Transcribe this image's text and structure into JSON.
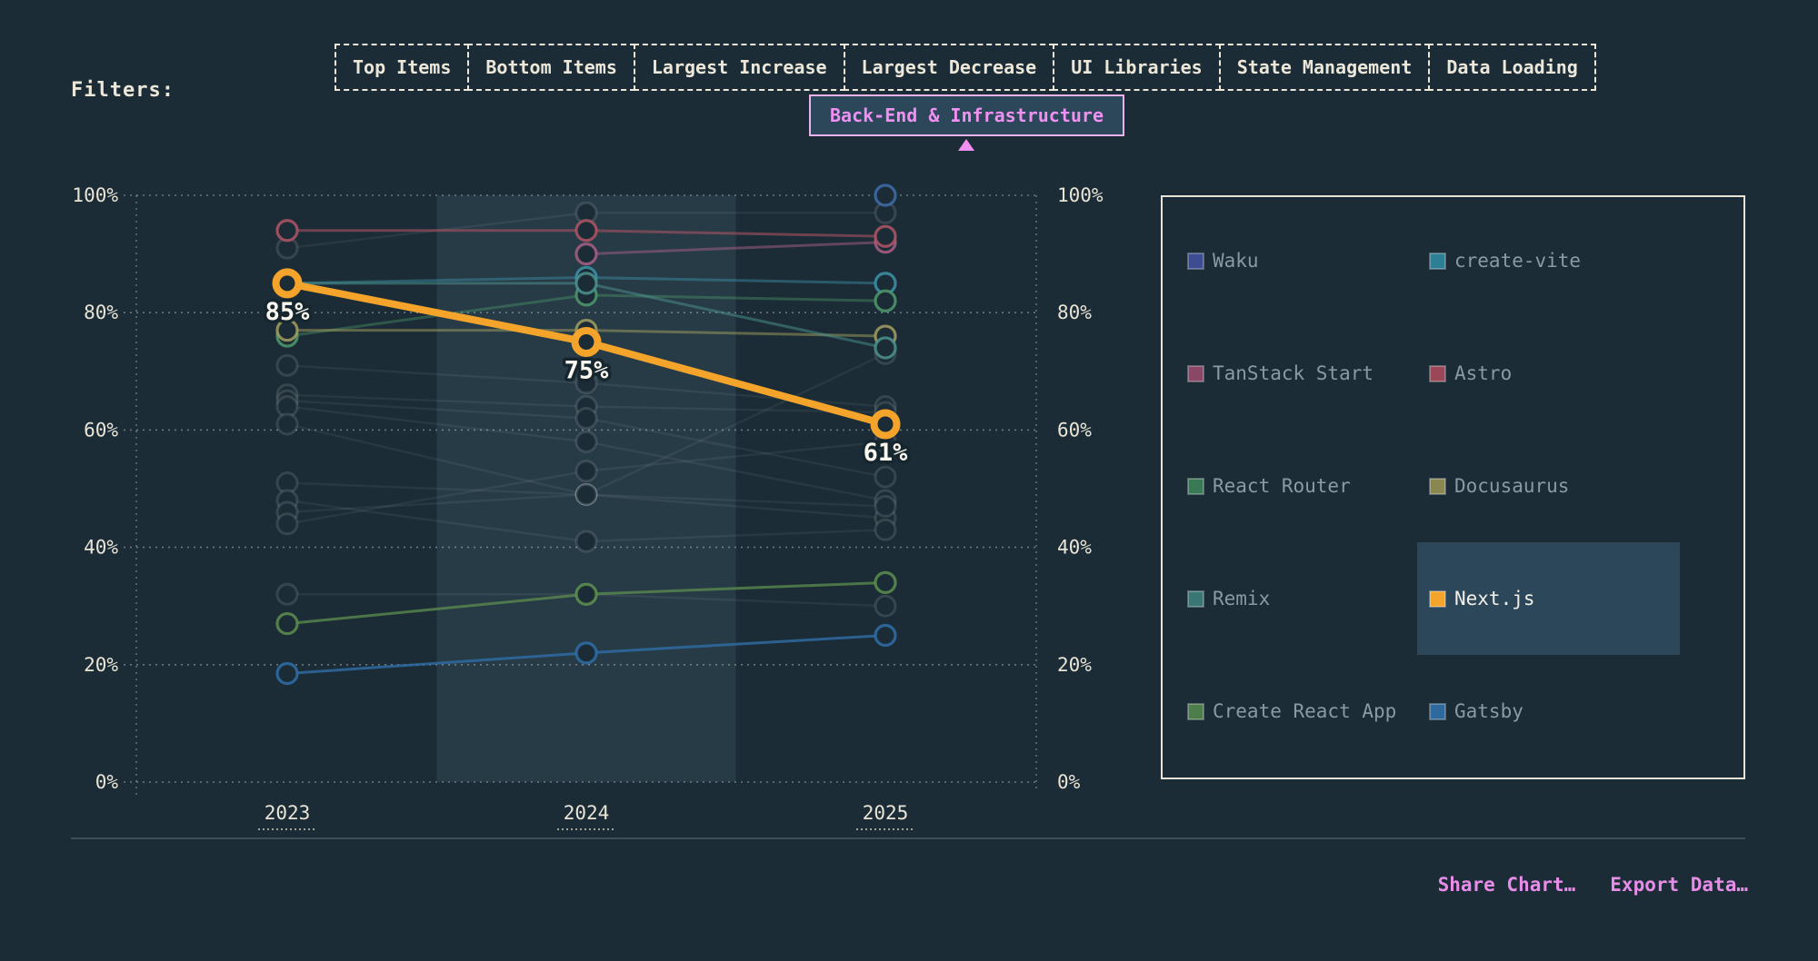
{
  "page": {
    "background": "#1b2c36",
    "accent_pink": "#ef90f2",
    "cream": "#ece7d9",
    "highlight_fill": "#2c4759"
  },
  "filters": {
    "label": "Filters:",
    "buttons": [
      {
        "label": "Top Items"
      },
      {
        "label": "Bottom Items"
      },
      {
        "label": "Largest Increase"
      },
      {
        "label": "Largest Decrease"
      },
      {
        "label": "UI Libraries"
      },
      {
        "label": "State Management"
      },
      {
        "label": "Data Loading"
      }
    ],
    "active_category": {
      "label": "Back-End & Infrastructure"
    }
  },
  "chart_data": {
    "type": "line",
    "x_categories": [
      "2023",
      "2024",
      "2025"
    ],
    "y_ticks": [
      "0%",
      "20%",
      "40%",
      "60%",
      "80%",
      "100%"
    ],
    "y_range": [
      0,
      100
    ],
    "grid": "dotted-horizontal",
    "axis_sides": [
      "left",
      "right"
    ],
    "highlight_band_x": "2024",
    "highlighted_series": "Next.js",
    "series": [
      {
        "name": "Waku",
        "color": "#3e6fad",
        "values": [
          null,
          null,
          100
        ]
      },
      {
        "name": "create-vite",
        "color": "#3d93a8",
        "values": [
          85,
          86,
          85
        ],
        "line_opacity": 0.45
      },
      {
        "name": "TanStack Start",
        "color": "#a85f85",
        "values": [
          null,
          90,
          92
        ],
        "line_opacity": 0.5
      },
      {
        "name": "Astro",
        "color": "#b25565",
        "values": [
          94,
          94,
          93
        ],
        "line_opacity": 0.55
      },
      {
        "name": "React Router",
        "color": "#4d9a6c",
        "values": [
          76,
          83,
          82
        ],
        "line_opacity": 0.4
      },
      {
        "name": "Docusaurus",
        "color": "#a3a05e",
        "values": [
          77,
          77,
          76
        ],
        "line_opacity": 0.5
      },
      {
        "name": "Remix",
        "color": "#4c938f",
        "values": [
          85,
          85,
          74
        ],
        "line_opacity": 0.5
      },
      {
        "name": "Next.js",
        "color": "#f5a42b",
        "values": [
          85,
          75,
          61
        ],
        "highlighted": true,
        "point_labels": [
          "85%",
          "75%",
          "61%"
        ]
      },
      {
        "name": "Create React App",
        "color": "#5d8f4e",
        "values": [
          27,
          32,
          34
        ],
        "line_opacity": 0.75
      },
      {
        "name": "Gatsby",
        "color": "#2f6ea8",
        "values": [
          18.5,
          22,
          25
        ],
        "line_opacity": 0.8
      }
    ],
    "background_lines": [
      [
        91,
        97,
        97
      ],
      [
        71,
        68,
        64
      ],
      [
        66,
        64,
        63
      ],
      [
        65,
        62,
        52
      ],
      [
        64,
        58,
        48
      ],
      [
        61,
        49,
        45
      ],
      [
        51,
        49,
        47
      ],
      [
        48,
        41,
        43
      ],
      [
        46,
        49,
        73
      ],
      [
        44,
        53,
        58
      ],
      [
        32,
        32,
        30
      ]
    ]
  },
  "legend": {
    "columns": 2,
    "items": [
      {
        "label": "Waku",
        "color": "#3e4c94",
        "highlighted": false
      },
      {
        "label": "create-vite",
        "color": "#2d7f95",
        "highlighted": false
      },
      {
        "label": "TanStack Start",
        "color": "#8a4766",
        "highlighted": false
      },
      {
        "label": "Astro",
        "color": "#9c4758",
        "highlighted": false
      },
      {
        "label": "React Router",
        "color": "#397a55",
        "highlighted": false
      },
      {
        "label": "Docusaurus",
        "color": "#8a8750",
        "highlighted": false
      },
      {
        "label": "Remix",
        "color": "#3a7673",
        "highlighted": false
      },
      {
        "label": "Next.js",
        "color": "#f5a42b",
        "highlighted": true
      },
      {
        "label": "Create React App",
        "color": "#4d7d4a",
        "highlighted": false
      },
      {
        "label": "Gatsby",
        "color": "#2e699e",
        "highlighted": false
      }
    ]
  },
  "footer": {
    "share_label": "Share Chart…",
    "export_label": "Export Data…"
  }
}
